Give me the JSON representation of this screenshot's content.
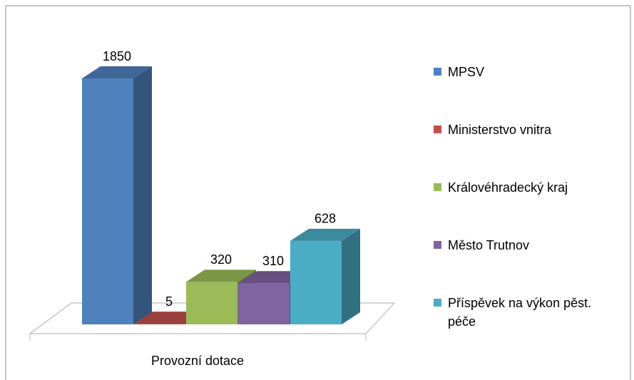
{
  "chart_data": {
    "type": "bar3d",
    "categories": [
      "Provozní dotace"
    ],
    "series": [
      {
        "name": "MPSV",
        "color": "#4f81bd",
        "values": [
          1850
        ]
      },
      {
        "name": "Ministerstvo vnitra",
        "color": "#c0504d",
        "values": [
          5
        ]
      },
      {
        "name": "Královéhradecký kraj",
        "color": "#9bbb59",
        "values": [
          320
        ]
      },
      {
        "name": "Město Trutnov",
        "color": "#8064a2",
        "values": [
          310
        ]
      },
      {
        "name": "Příspěvek na výkon pěst. péče",
        "color": "#4bacc6",
        "values": [
          628
        ]
      }
    ],
    "legend": "right"
  }
}
